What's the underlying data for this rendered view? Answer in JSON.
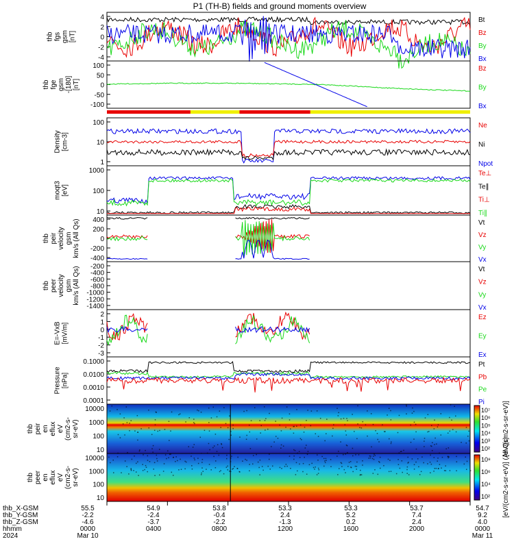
{
  "title": "P1 (TH-B) fields and ground moments overview",
  "colors": {
    "black": "#000000",
    "red": "#e80000",
    "green": "#18d818",
    "blue": "#0000e8",
    "yellow": "#f0f000"
  },
  "panels": [
    {
      "id": "fgs",
      "ylabel": [
        "thb",
        "fgs",
        "gsm",
        "[nT]"
      ],
      "ticks": [
        "4",
        "2",
        "0",
        "-2",
        "-4"
      ],
      "legend": [
        {
          "t": "Bt",
          "c": "black"
        },
        {
          "t": "Bz",
          "c": "red"
        },
        {
          "t": "By",
          "c": "green"
        },
        {
          "t": "Bx",
          "c": "blue"
        }
      ]
    },
    {
      "id": "fge",
      "ylabel": [
        "thb",
        "fge",
        "gsm",
        "-[180]",
        "[nT]"
      ],
      "ticks": [
        "100",
        "50",
        "0",
        "-50",
        "-100"
      ],
      "legend": [
        {
          "t": "Bz",
          "c": "red"
        },
        {
          "t": "By",
          "c": "green"
        },
        {
          "t": "Bx",
          "c": "blue"
        }
      ]
    },
    {
      "id": "density",
      "ylabel": [
        "Density",
        "[cm-3]"
      ],
      "ticks": [
        "100",
        "10",
        "1"
      ],
      "legend": [
        {
          "t": "Ne",
          "c": "red"
        },
        {
          "t": "Ni",
          "c": "black"
        },
        {
          "t": "Npot",
          "c": "blue"
        }
      ]
    },
    {
      "id": "temp",
      "ylabel": [
        "moqt3",
        "[eV]"
      ],
      "ticks": [
        "1000",
        "100",
        "10"
      ],
      "legend": [
        {
          "t": "Te⊥",
          "c": "red"
        },
        {
          "t": "Te∥",
          "c": "black"
        },
        {
          "t": "Ti⊥",
          "c": "red"
        },
        {
          "t": "Ti∥",
          "c": "green"
        }
      ]
    },
    {
      "id": "peir_vel",
      "ylabel": [
        "thb",
        "peir",
        "velocity",
        "gsm",
        "km/s (All Qs)"
      ],
      "ticks": [
        "400",
        "200",
        "0",
        "-200",
        "-400"
      ],
      "legend": [
        {
          "t": "Vt",
          "c": "black"
        },
        {
          "t": "Vz",
          "c": "red"
        },
        {
          "t": "Vy",
          "c": "green"
        },
        {
          "t": "Vx",
          "c": "blue"
        }
      ]
    },
    {
      "id": "peer_vel",
      "ylabel": [
        "thb",
        "peer",
        "velocity",
        "gsm",
        "km/s (All Qs)"
      ],
      "ticks": [
        "-200",
        "-400",
        "-600",
        "-800",
        "-1000",
        "-1200",
        "-1400"
      ],
      "legend": [
        {
          "t": "Vt",
          "c": "black"
        },
        {
          "t": "Vz",
          "c": "red"
        },
        {
          "t": "Vy",
          "c": "green"
        },
        {
          "t": "Vx",
          "c": "blue"
        }
      ]
    },
    {
      "id": "efield",
      "ylabel": [
        "E=-VxB",
        "[mV/m]"
      ],
      "ticks": [
        "2",
        "1",
        "0",
        "-1",
        "-2",
        "-3"
      ],
      "legend": [
        {
          "t": "Ez",
          "c": "red"
        },
        {
          "t": "Ey",
          "c": "green"
        },
        {
          "t": "Ex",
          "c": "blue"
        }
      ]
    },
    {
      "id": "pressure",
      "ylabel": [
        "Pressure",
        "[nPa]"
      ],
      "ticks": [
        "0.1000",
        "0.0100",
        "0.0010",
        "0.0001"
      ],
      "legend": [
        {
          "t": "Pt",
          "c": "black"
        },
        {
          "t": "Pb",
          "c": "red"
        },
        {
          "t": "Pe",
          "c": "green"
        },
        {
          "t": "Pi",
          "c": "blue"
        }
      ]
    },
    {
      "id": "peir_spec",
      "ylabel": [
        "thb",
        "peir",
        "en",
        "eflux",
        "eV",
        "(cm2-s-",
        "sr-eV)"
      ],
      "ticks": [
        "10000",
        "1000",
        "100",
        "10"
      ],
      "cbar_ticks": [
        "10⁷",
        "10⁶",
        "10⁵",
        "10⁴",
        "10³",
        "10²"
      ],
      "cbar_label": "[eV/(cm2-s-sr-eV)]"
    },
    {
      "id": "peer_spec",
      "ylabel": [
        "thb",
        "peer",
        "en",
        "eflux",
        "eV",
        "(cm2-s-",
        "sr-eV)"
      ],
      "ticks": [
        "10000",
        "1000",
        "100",
        "10"
      ],
      "cbar_ticks": [
        "10⁸",
        "10⁶",
        "10⁴",
        "10²"
      ],
      "cbar_label": "[eV/(cm2-s-sr-eV)] (All Qs)"
    }
  ],
  "orbit_bar": [
    {
      "from": 0.0,
      "to": 0.23,
      "color": "red"
    },
    {
      "from": 0.23,
      "to": 0.365,
      "color": "yellow"
    },
    {
      "from": 0.365,
      "to": 0.56,
      "color": "red"
    },
    {
      "from": 0.56,
      "to": 1.0,
      "color": "yellow"
    }
  ],
  "bottom_axis": {
    "row_labels": [
      "thb_X-GSM",
      "thb_Y-GSM",
      "thb_Z-GSM",
      "hhmm",
      "2024"
    ],
    "columns": [
      [
        "55.5",
        "-2.2",
        "-4.6",
        "0000",
        "Mar 10"
      ],
      [
        "54.9",
        "-2.4",
        "-3.7",
        "0400",
        ""
      ],
      [
        "53.8",
        "-0.4",
        "-2.2",
        "0800",
        ""
      ],
      [
        "53.3",
        "2.4",
        "-1.3",
        "1200",
        ""
      ],
      [
        "53.3",
        "5.2",
        "0.2",
        "1600",
        ""
      ],
      [
        "53.7",
        "7.4",
        "2.4",
        "2000",
        ""
      ],
      [
        "54.7",
        "9.2",
        "4.0",
        "0000",
        "Mar 11"
      ]
    ]
  },
  "chart_data": {
    "type": "line",
    "title": "P1 (TH-B) fields and ground moments overview",
    "x": [
      "0000",
      "0400",
      "0800",
      "1200",
      "1600",
      "2000",
      "0000"
    ],
    "xlabel": "hhmm",
    "series": [
      {
        "name": "fgs Bt",
        "values": [
          3.5,
          3.5,
          4.2,
          4.5,
          4.0,
          3.8,
          3.5
        ]
      },
      {
        "name": "fgs Bz",
        "values": [
          0.5,
          -0.5,
          -2.0,
          2.0,
          1.0,
          2.5,
          1.5
        ]
      },
      {
        "name": "fgs By",
        "values": [
          -1.0,
          1.0,
          0.5,
          -2.0,
          -2.5,
          -2.5,
          -3.0
        ]
      },
      {
        "name": "fgs Bx",
        "values": [
          2.0,
          2.5,
          3.0,
          1.5,
          2.0,
          -1.0,
          -3.0
        ]
      },
      {
        "name": "fge By",
        "values": [
          0,
          5,
          5,
          5,
          0,
          -20,
          -40
        ]
      },
      {
        "name": "fge Bx",
        "values": [
          null,
          null,
          null,
          100,
          0,
          -110,
          null
        ]
      },
      {
        "name": "Npot",
        "values": [
          30,
          25,
          40,
          8,
          25,
          25,
          25
        ]
      },
      {
        "name": "Ni",
        "values": [
          2,
          2,
          2,
          1,
          2,
          2,
          2
        ]
      },
      {
        "name": "Te∥",
        "values": [
          90,
          1000,
          1000,
          60,
          1000,
          1000,
          1000
        ]
      },
      {
        "name": "peir Vt",
        "values": [
          400,
          null,
          420,
          420,
          null,
          null,
          null
        ]
      },
      {
        "name": "peir Vx",
        "values": [
          -400,
          null,
          null,
          -400,
          null,
          null,
          null
        ]
      },
      {
        "name": "Pt",
        "values": [
          0.05,
          0.15,
          0.15,
          0.04,
          0.15,
          0.15,
          0.15
        ]
      },
      {
        "name": "Pb",
        "values": [
          0.008,
          0.007,
          0.007,
          0.01,
          0.007,
          0.007,
          0.007
        ]
      }
    ]
  }
}
